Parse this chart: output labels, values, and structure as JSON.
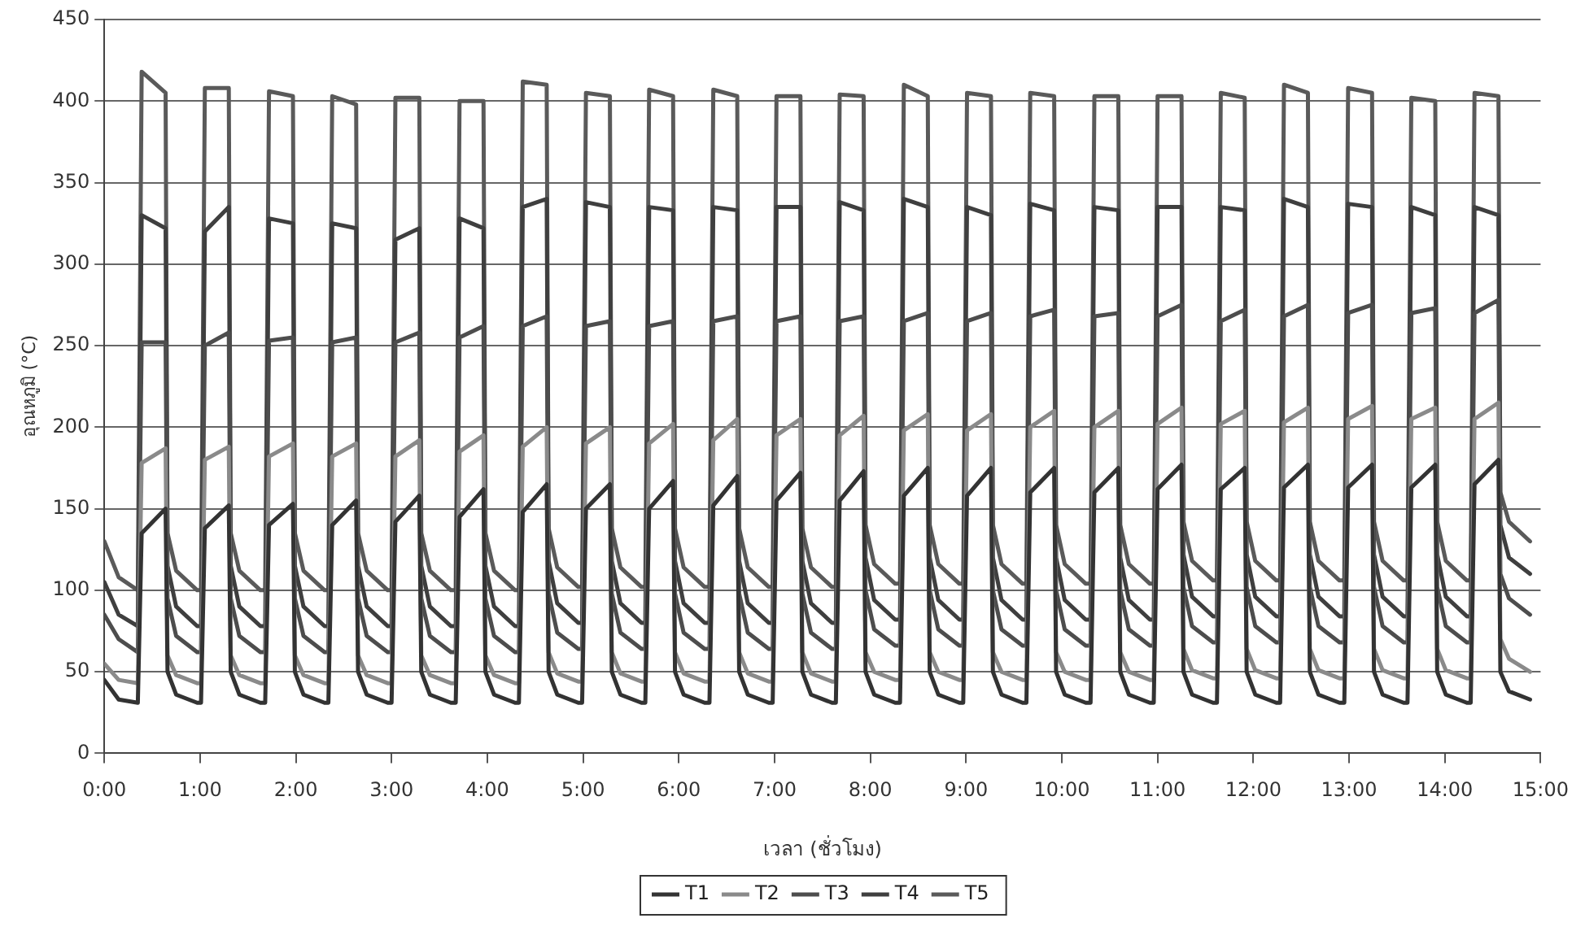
{
  "chart_data": {
    "type": "line",
    "xlabel": "เวลา (ชั่วโมง)",
    "ylabel": "อุณหภูมิ (°C)",
    "xlim": [
      0,
      15
    ],
    "xticks": [
      {
        "value": 0,
        "label": "0:00"
      },
      {
        "value": 1,
        "label": "1:00"
      },
      {
        "value": 2,
        "label": "2:00"
      },
      {
        "value": 3,
        "label": "3:00"
      },
      {
        "value": 4,
        "label": "4:00"
      },
      {
        "value": 5,
        "label": "5:00"
      },
      {
        "value": 6,
        "label": "6:00"
      },
      {
        "value": 7,
        "label": "7:00"
      },
      {
        "value": 8,
        "label": "8:00"
      },
      {
        "value": 9,
        "label": "9:00"
      },
      {
        "value": 10,
        "label": "10:00"
      },
      {
        "value": 11,
        "label": "11:00"
      },
      {
        "value": 12,
        "label": "12:00"
      },
      {
        "value": 13,
        "label": "13:00"
      },
      {
        "value": 14,
        "label": "14:00"
      },
      {
        "value": 15,
        "label": "15:00"
      }
    ],
    "ylim": [
      0,
      450
    ],
    "yticks": [
      0,
      50,
      100,
      150,
      200,
      250,
      300,
      350,
      400,
      450
    ],
    "grid": "y",
    "legend": "bottom",
    "marker": "none",
    "line_style": "solid",
    "x": [
      0,
      0.15,
      0.35,
      0.39,
      0.64,
      0.66,
      0.75,
      0.97,
      1.01,
      1.05,
      1.3,
      1.32,
      1.41,
      1.63,
      1.68,
      1.72,
      1.97,
      1.99,
      2.08,
      2.3,
      2.34,
      2.38,
      2.63,
      2.65,
      2.74,
      2.96,
      3.0,
      3.04,
      3.29,
      3.31,
      3.4,
      3.62,
      3.67,
      3.71,
      3.96,
      3.98,
      4.07,
      4.29,
      4.33,
      4.37,
      4.62,
      4.64,
      4.73,
      4.95,
      4.99,
      5.03,
      5.28,
      5.3,
      5.39,
      5.61,
      5.65,
      5.69,
      5.94,
      5.96,
      6.05,
      6.27,
      6.32,
      6.36,
      6.61,
      6.63,
      6.72,
      6.94,
      6.98,
      7.02,
      7.27,
      7.29,
      7.38,
      7.6,
      7.64,
      7.68,
      7.93,
      7.95,
      8.04,
      8.26,
      8.31,
      8.35,
      8.6,
      8.62,
      8.71,
      8.93,
      8.97,
      9.01,
      9.26,
      9.28,
      9.37,
      9.59,
      9.63,
      9.67,
      9.92,
      9.94,
      10.03,
      10.25,
      10.3,
      10.34,
      10.59,
      10.61,
      10.7,
      10.92,
      10.96,
      11.0,
      11.25,
      11.27,
      11.36,
      11.58,
      11.62,
      11.66,
      11.91,
      11.93,
      12.02,
      12.24,
      12.28,
      12.32,
      12.57,
      12.59,
      12.68,
      12.9,
      12.95,
      12.99,
      13.24,
      13.26,
      13.35,
      13.57,
      13.61,
      13.65,
      13.9,
      13.92,
      14.01,
      14.23,
      14.27,
      14.31,
      14.56,
      14.58,
      14.67,
      14.89
    ],
    "series": [
      {
        "name": "T1",
        "color": "#333333",
        "values": [
          45,
          33,
          31,
          135,
          150,
          50,
          36,
          31,
          31,
          138,
          152,
          50,
          36,
          31,
          31,
          140,
          153,
          50,
          36,
          31,
          31,
          140,
          155,
          50,
          36,
          31,
          31,
          142,
          158,
          50,
          36,
          31,
          31,
          145,
          162,
          50,
          36,
          31,
          31,
          148,
          165,
          50,
          36,
          31,
          31,
          150,
          165,
          50,
          36,
          31,
          31,
          150,
          167,
          50,
          36,
          31,
          31,
          152,
          170,
          50,
          36,
          31,
          31,
          155,
          172,
          50,
          36,
          31,
          31,
          155,
          173,
          50,
          36,
          31,
          31,
          158,
          175,
          50,
          36,
          31,
          31,
          158,
          175,
          50,
          36,
          31,
          31,
          160,
          175,
          50,
          36,
          31,
          31,
          160,
          175,
          50,
          36,
          31,
          31,
          162,
          177,
          50,
          36,
          31,
          31,
          162,
          175,
          50,
          36,
          31,
          31,
          163,
          177,
          50,
          36,
          31,
          31,
          163,
          177,
          50,
          36,
          31,
          31,
          163,
          177,
          50,
          36,
          31,
          31,
          165,
          180,
          50,
          38,
          33
        ]
      },
      {
        "name": "T2",
        "color": "#8a8a8a",
        "values": [
          55,
          45,
          43,
          178,
          187,
          60,
          48,
          43,
          43,
          180,
          188,
          60,
          48,
          43,
          43,
          182,
          190,
          60,
          48,
          43,
          43,
          182,
          190,
          60,
          48,
          43,
          43,
          182,
          192,
          60,
          48,
          43,
          43,
          185,
          195,
          60,
          48,
          43,
          43,
          188,
          200,
          62,
          49,
          44,
          44,
          190,
          200,
          62,
          49,
          44,
          44,
          190,
          202,
          62,
          49,
          44,
          44,
          192,
          205,
          62,
          49,
          44,
          44,
          195,
          205,
          62,
          49,
          44,
          44,
          195,
          207,
          62,
          50,
          45,
          45,
          198,
          208,
          62,
          50,
          45,
          45,
          198,
          208,
          62,
          50,
          45,
          45,
          200,
          210,
          62,
          50,
          45,
          45,
          200,
          210,
          62,
          50,
          45,
          45,
          202,
          212,
          64,
          51,
          46,
          46,
          202,
          210,
          64,
          51,
          46,
          46,
          203,
          212,
          64,
          51,
          46,
          46,
          205,
          213,
          64,
          51,
          46,
          46,
          205,
          212,
          64,
          51,
          46,
          46,
          205,
          215,
          70,
          58,
          50
        ]
      },
      {
        "name": "T3",
        "color": "#4d4d4d",
        "values": [
          85,
          70,
          62,
          252,
          252,
          95,
          72,
          62,
          62,
          250,
          258,
          95,
          72,
          62,
          62,
          253,
          255,
          95,
          72,
          62,
          62,
          252,
          255,
          95,
          72,
          62,
          62,
          252,
          258,
          95,
          72,
          62,
          62,
          255,
          262,
          95,
          72,
          62,
          62,
          262,
          268,
          98,
          74,
          64,
          64,
          262,
          265,
          98,
          74,
          64,
          64,
          262,
          265,
          98,
          74,
          64,
          64,
          265,
          268,
          98,
          74,
          64,
          64,
          265,
          268,
          98,
          74,
          64,
          64,
          265,
          268,
          100,
          76,
          66,
          66,
          265,
          270,
          100,
          76,
          66,
          66,
          265,
          270,
          100,
          76,
          66,
          66,
          268,
          272,
          100,
          76,
          66,
          66,
          268,
          270,
          100,
          76,
          66,
          66,
          268,
          275,
          102,
          78,
          68,
          68,
          265,
          272,
          102,
          78,
          68,
          68,
          268,
          275,
          102,
          78,
          68,
          68,
          270,
          275,
          102,
          78,
          68,
          68,
          270,
          273,
          102,
          78,
          68,
          68,
          270,
          278,
          110,
          95,
          85
        ]
      },
      {
        "name": "T4",
        "color": "#3f3f3f",
        "values": [
          105,
          85,
          78,
          330,
          322,
          115,
          90,
          78,
          78,
          320,
          335,
          115,
          90,
          78,
          78,
          328,
          325,
          115,
          90,
          78,
          78,
          325,
          322,
          115,
          90,
          78,
          78,
          315,
          322,
          115,
          90,
          78,
          78,
          328,
          322,
          115,
          90,
          78,
          78,
          335,
          340,
          118,
          92,
          80,
          80,
          338,
          335,
          118,
          92,
          80,
          80,
          335,
          333,
          118,
          92,
          80,
          80,
          335,
          333,
          118,
          92,
          80,
          80,
          335,
          335,
          118,
          92,
          80,
          80,
          338,
          333,
          120,
          94,
          82,
          82,
          340,
          335,
          120,
          94,
          82,
          82,
          335,
          330,
          120,
          94,
          82,
          82,
          337,
          333,
          120,
          94,
          82,
          82,
          335,
          333,
          120,
          94,
          82,
          82,
          335,
          335,
          122,
          96,
          84,
          84,
          335,
          333,
          122,
          96,
          84,
          84,
          340,
          335,
          122,
          96,
          84,
          84,
          337,
          335,
          122,
          96,
          84,
          84,
          335,
          330,
          122,
          96,
          84,
          84,
          335,
          330,
          140,
          120,
          110
        ]
      },
      {
        "name": "T5",
        "color": "#5a5a5a",
        "values": [
          130,
          108,
          100,
          418,
          405,
          135,
          112,
          100,
          100,
          408,
          408,
          135,
          112,
          100,
          100,
          406,
          403,
          135,
          112,
          100,
          100,
          403,
          398,
          135,
          112,
          100,
          100,
          402,
          402,
          135,
          112,
          100,
          100,
          400,
          400,
          135,
          112,
          100,
          100,
          412,
          410,
          138,
          114,
          102,
          102,
          405,
          403,
          138,
          114,
          102,
          102,
          407,
          403,
          138,
          114,
          102,
          102,
          407,
          403,
          138,
          114,
          102,
          102,
          403,
          403,
          138,
          114,
          102,
          102,
          404,
          403,
          140,
          116,
          104,
          104,
          410,
          403,
          140,
          116,
          104,
          104,
          405,
          403,
          140,
          116,
          104,
          104,
          405,
          403,
          140,
          116,
          104,
          104,
          403,
          403,
          140,
          116,
          104,
          104,
          403,
          403,
          142,
          118,
          106,
          106,
          405,
          402,
          142,
          118,
          106,
          106,
          410,
          405,
          142,
          118,
          106,
          106,
          408,
          405,
          142,
          118,
          106,
          106,
          402,
          400,
          142,
          118,
          106,
          106,
          405,
          403,
          160,
          142,
          130
        ]
      }
    ]
  }
}
